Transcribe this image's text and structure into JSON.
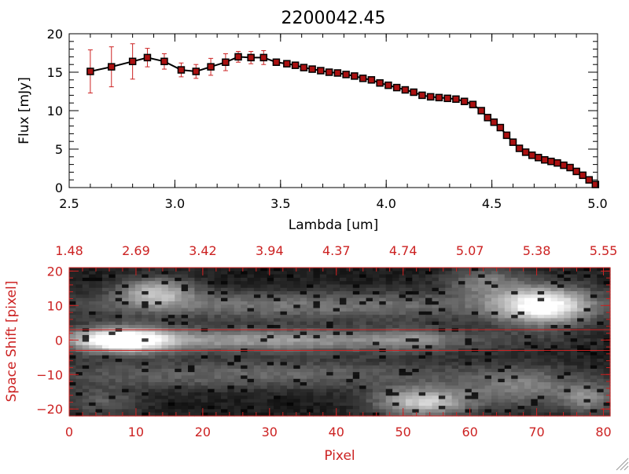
{
  "chart_data": [
    {
      "type": "line",
      "title": "2200042.45",
      "xlabel": "Lambda [um]",
      "ylabel": "Flux [mJy]",
      "xlim": [
        2.5,
        5.0
      ],
      "ylim": [
        0,
        20
      ],
      "xticks": [
        2.5,
        3.0,
        3.5,
        4.0,
        4.5,
        5.0
      ],
      "xtick_labels": [
        "2.5",
        "3.0",
        "3.5",
        "4.0",
        "4.5",
        "5.0"
      ],
      "yticks": [
        0,
        5,
        10,
        15,
        20
      ],
      "ytick_labels": [
        "0",
        "5",
        "10",
        "15",
        "20"
      ],
      "series": [
        {
          "name": "flux",
          "line_color": "#000000",
          "marker_color": "#aa1111",
          "errorbar_color": "#cc2222",
          "x": [
            2.6,
            2.7,
            2.8,
            2.87,
            2.95,
            3.03,
            3.1,
            3.17,
            3.24,
            3.3,
            3.36,
            3.42,
            3.48,
            3.53,
            3.57,
            3.61,
            3.65,
            3.69,
            3.73,
            3.77,
            3.81,
            3.85,
            3.89,
            3.93,
            3.97,
            4.01,
            4.05,
            4.09,
            4.13,
            4.17,
            4.21,
            4.25,
            4.29,
            4.33,
            4.37,
            4.41,
            4.45,
            4.48,
            4.51,
            4.54,
            4.57,
            4.6,
            4.63,
            4.66,
            4.69,
            4.72,
            4.75,
            4.78,
            4.81,
            4.84,
            4.87,
            4.9,
            4.93,
            4.96,
            4.99
          ],
          "y": [
            15.1,
            15.7,
            16.4,
            16.9,
            16.4,
            15.3,
            15.1,
            15.7,
            16.3,
            17.0,
            16.9,
            16.9,
            16.3,
            16.1,
            15.9,
            15.6,
            15.4,
            15.2,
            15.0,
            14.9,
            14.7,
            14.5,
            14.2,
            14.0,
            13.6,
            13.3,
            13.0,
            12.7,
            12.4,
            12.0,
            11.8,
            11.7,
            11.6,
            11.5,
            11.2,
            10.8,
            10.0,
            9.1,
            8.5,
            7.8,
            6.8,
            5.9,
            5.1,
            4.6,
            4.2,
            3.9,
            3.6,
            3.4,
            3.2,
            2.9,
            2.6,
            2.1,
            1.6,
            1.0,
            0.4
          ],
          "error": [
            2.8,
            2.6,
            2.3,
            1.2,
            1.0,
            0.9,
            0.9,
            1.1,
            1.1,
            0.7,
            0.8,
            0.9,
            0.4,
            0.3,
            0.3,
            0.3,
            0.3,
            0.3,
            0.3,
            0.3,
            0.3,
            0.3,
            0.3,
            0.3,
            0.3,
            0.3,
            0.3,
            0.3,
            0.3,
            0.3,
            0.3,
            0.3,
            0.3,
            0.3,
            0.3,
            0.3,
            0.3,
            0.3,
            0.3,
            0.3,
            0.3,
            0.3,
            0.3,
            0.3,
            0.3,
            0.3,
            0.3,
            0.3,
            0.3,
            0.3,
            0.3,
            0.3,
            0.3,
            0.3,
            0.3
          ]
        }
      ]
    },
    {
      "type": "heatmap",
      "title": "",
      "xlabel": "Pixel",
      "ylabel": "Space Shift [pixel]",
      "xlim": [
        0,
        81
      ],
      "ylim": [
        -22,
        21
      ],
      "xticks": [
        0,
        10,
        20,
        30,
        40,
        50,
        60,
        70,
        80
      ],
      "xtick_labels": [
        "0",
        "10",
        "20",
        "30",
        "40",
        "50",
        "60",
        "70",
        "80"
      ],
      "yticks": [
        -20,
        -10,
        0,
        10,
        20
      ],
      "ytick_labels": [
        "−20",
        "−10",
        "0",
        "10",
        "20"
      ],
      "top_axis_labels": [
        "1.48",
        "2.69",
        "3.42",
        "3.94",
        "4.37",
        "4.74",
        "5.07",
        "5.38",
        "5.55"
      ],
      "extraction_aperture_y": [
        -3,
        3
      ],
      "axis_color": "#cc2222",
      "colormap": "grayscale",
      "blobs": [
        {
          "x": 8,
          "y": 0,
          "sx": 5,
          "sy": 2.5,
          "amp": 0.95
        },
        {
          "x": 30,
          "y": 0,
          "sx": 22,
          "sy": 2.5,
          "amp": 0.5
        },
        {
          "x": 52,
          "y": 0,
          "sx": 4,
          "sy": 2.5,
          "amp": 0.18
        },
        {
          "x": 36,
          "y": 10,
          "sx": 28,
          "sy": 3,
          "amp": 0.35
        },
        {
          "x": 13,
          "y": 14,
          "sx": 4,
          "sy": 3,
          "amp": 0.55
        },
        {
          "x": 28,
          "y": -10,
          "sx": 26,
          "sy": 3,
          "amp": 0.3
        },
        {
          "x": 71,
          "y": 10,
          "sx": 5,
          "sy": 4,
          "amp": 0.85
        },
        {
          "x": 62,
          "y": 17,
          "sx": 4,
          "sy": 3,
          "amp": 0.35
        },
        {
          "x": 53,
          "y": -18,
          "sx": 5,
          "sy": 3,
          "amp": 0.7
        },
        {
          "x": 78,
          "y": -17,
          "sx": 3,
          "sy": 3,
          "amp": 0.4
        },
        {
          "x": 68,
          "y": -14,
          "sx": 6,
          "sy": 4,
          "amp": 0.35
        },
        {
          "x": 5,
          "y": -18,
          "sx": 4,
          "sy": 3,
          "amp": 0.25
        }
      ]
    }
  ]
}
